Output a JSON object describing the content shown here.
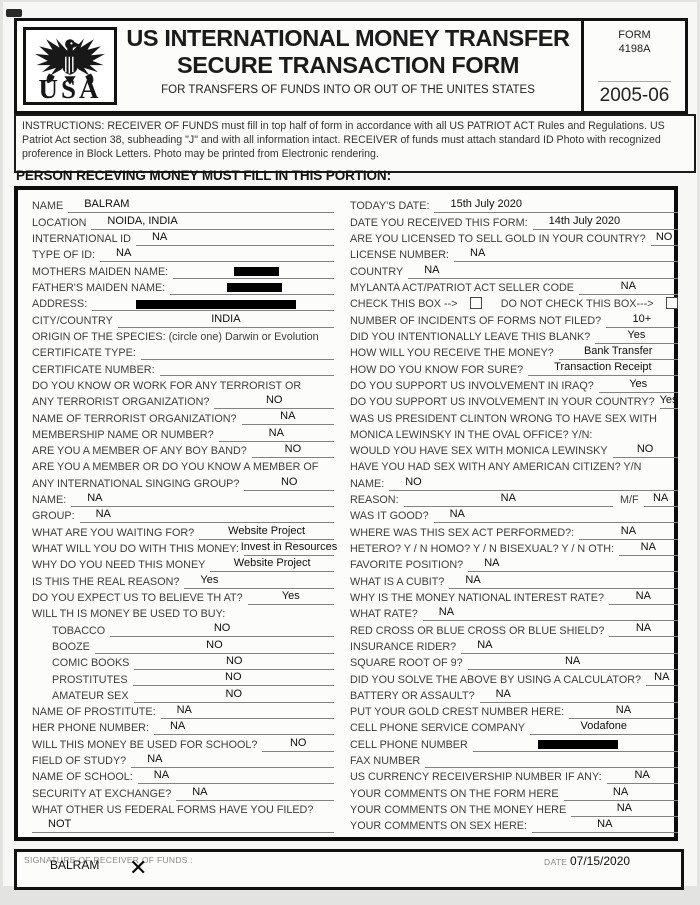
{
  "header": {
    "logo_text": "USA",
    "title_line1": "US INTERNATIONAL MONEY TRANSFER",
    "title_line2": "SECURE TRANSACTION FORM",
    "subtitle": "FOR TRANSFERS OF FUNDS INTO OR OUT OF THE UNITES STATES",
    "form_label": "FORM",
    "form_number": "4198A",
    "form_year": "2005-06"
  },
  "instructions": "INSTRUCTIONS: RECEIVER OF FUNDS  must fill in top half of form in accordance with all US PATRIOT ACT Rules and Regulations.  US Patriot Act section 38, subheading \"J\" and with all information intact. RECEIVER of funds must attach standard ID Photo with recognized proference in Block Letters.  Photo may be printed from Electronic rendering.",
  "section_heading": "PERSON RECEVING MONEY MUST FILL IN THIS PORTION:",
  "left_rows": [
    {
      "t": "f",
      "l": "NAME",
      "v": "BALRAM",
      "a": "l"
    },
    {
      "t": "f",
      "l": "LOCATION",
      "v": "NOIDA, INDIA",
      "a": "l"
    },
    {
      "t": "f",
      "l": "INTERNATIONAL ID",
      "v": "NA",
      "a": "l"
    },
    {
      "t": "f",
      "l": "TYPE OF ID:",
      "v": "NA",
      "a": "l"
    },
    {
      "t": "f",
      "l": "MOTHERS MAIDEN NAME:",
      "red": 45
    },
    {
      "t": "f",
      "l": "FATHER'S MAIDEN NAME:",
      "red": 55
    },
    {
      "t": "f",
      "l": "ADDRESS:",
      "red": 160
    },
    {
      "t": "f",
      "l": "CITY/COUNTRY",
      "v": "INDIA"
    },
    {
      "t": "t",
      "l": "ORIGIN OF THE SPECIES:  (circle one) Darwin or Evolution"
    },
    {
      "t": "f",
      "l": "CERTIFICATE TYPE:",
      "v": ""
    },
    {
      "t": "f",
      "l": "CERTIFICATE NUMBER:",
      "v": ""
    },
    {
      "t": "t",
      "l": "DO YOU KNOW OR WORK FOR ANY TERRORIST OR"
    },
    {
      "t": "f",
      "l": "ANY TERRORIST ORGANIZATION?",
      "v": "NO"
    },
    {
      "t": "f",
      "l": "NAME OF TERRORIST ORGANIZATION?",
      "v": "NA"
    },
    {
      "t": "f",
      "l": "MEMBERSHIP NAME OR NUMBER?",
      "v": "NA"
    },
    {
      "t": "f",
      "l": "ARE YOU A MEMBER OF ANY BOY BAND?",
      "v": "NO"
    },
    {
      "t": "t",
      "l": "ARE YOU A MEMBER OR DO YOU KNOW A MEMBER OF"
    },
    {
      "t": "f",
      "l": "ANY INTERNATIONAL SINGING GROUP?",
      "v": "NO"
    },
    {
      "t": "f",
      "l": "NAME:",
      "v": "NA",
      "a": "l"
    },
    {
      "t": "f",
      "l": "GROUP:",
      "v": "NA",
      "a": "l"
    },
    {
      "t": "f",
      "l": "WHAT ARE YOU WAITING FOR?",
      "v": "Website Project"
    },
    {
      "t": "f",
      "l": "WHAT WILL YOU DO WITH THIS MONEY:",
      "v": "Invest in Resources"
    },
    {
      "t": "f",
      "l": "WHY DO YOU NEED THIS MONEY",
      "v": "Website Project"
    },
    {
      "t": "f",
      "l": "IS THIS THE REAL REASON?",
      "v": "Yes",
      "a": "l"
    },
    {
      "t": "f",
      "l": "DO YOU EXPECT US TO BELIEVE TH AT?",
      "v": "Yes"
    },
    {
      "t": "t",
      "l": "WILL TH IS MONEY BE USED TO BUY:"
    },
    {
      "t": "f",
      "l": "TOBACCO",
      "v": "NO",
      "ind": 1
    },
    {
      "t": "f",
      "l": "BOOZE",
      "v": "NO",
      "ind": 1
    },
    {
      "t": "f",
      "l": "COMIC BOOKS",
      "v": "NO",
      "ind": 1
    },
    {
      "t": "f",
      "l": "PROSTITUTES",
      "v": "NO",
      "ind": 1
    },
    {
      "t": "f",
      "l": "AMATEUR SEX",
      "v": "NO",
      "ind": 1
    },
    {
      "t": "f",
      "l": "NAME OF PROSTITUTE:",
      "v": "NA",
      "a": "l"
    },
    {
      "t": "f",
      "l": "HER PHONE NUMBER:",
      "v": "NA",
      "a": "l"
    },
    {
      "t": "f",
      "l": "WILL THIS MONEY BE USED FOR SCHOOL?",
      "v": "NO"
    },
    {
      "t": "f",
      "l": "FIELD OF STUDY?",
      "v": "NA",
      "a": "l"
    },
    {
      "t": "f",
      "l": "NAME OF SCHOOL:",
      "v": "NA",
      "a": "l"
    },
    {
      "t": "f",
      "l": "SECURITY AT EXCHANGE?",
      "v": "NA",
      "a": "l"
    },
    {
      "t": "t",
      "l": "WHAT OTHER US FEDERAL FORMS HAVE YOU FILED?"
    },
    {
      "t": "f",
      "l": "",
      "v": "NOT",
      "a": "l"
    }
  ],
  "right_rows": [
    {
      "t": "f",
      "l": "TODAY'S DATE:",
      "v": "15th July  2020",
      "a": "l"
    },
    {
      "t": "f",
      "l": "DATE YOU RECEIVED THIS FORM:",
      "v": "14th July 2020",
      "a": "l"
    },
    {
      "t": "f",
      "l": "ARE YOU LICENSED TO SELL GOLD IN YOUR COUNTRY?",
      "v": "NO"
    },
    {
      "t": "f",
      "l": "LICENSE NUMBER:",
      "v": "NA",
      "a": "l"
    },
    {
      "t": "f",
      "l": "COUNTRY",
      "v": "NA",
      "a": "l"
    },
    {
      "t": "f",
      "l": "MYLANTA ACT/PATRIOT ACT SELLER CODE",
      "v": "NA"
    },
    {
      "t": "cb",
      "l1": "CHECK THIS BOX -->",
      "l2": "DO NOT CHECK THIS BOX--->"
    },
    {
      "t": "f",
      "l": "NUMBER OF INCIDENTS OF FORMS NOT FILED?",
      "v": "10+"
    },
    {
      "t": "f",
      "l": "DID YOU INTENTIONALLY LEAVE THIS BLANK?",
      "v": "Yes"
    },
    {
      "t": "f",
      "l": "HOW WILL YOU RECEIVE THE MONEY?",
      "v": "Bank Transfer"
    },
    {
      "t": "f",
      "l": "HOW DO YOU KNOW FOR SURE?",
      "v": "Transaction Receipt"
    },
    {
      "t": "f",
      "l": "DO YOU SUPPORT US INVOLVEMENT IN IRAQ?",
      "v": "Yes"
    },
    {
      "t": "f",
      "l": "DO YOU SUPPORT US INVOLVEMENT IN YOUR COUNTRY?",
      "v": "Yes"
    },
    {
      "t": "t",
      "l": "WAS US PRESIDENT CLINTON  WRONG TO HAVE SEX WITH"
    },
    {
      "t": "t",
      "l": "MONICA LEWINSKY IN THE OVAL OFFICE? Y/N:"
    },
    {
      "t": "f",
      "l": "WOULD YOU HAVE SEX WITH MONICA LEWINSKY",
      "v": "NO"
    },
    {
      "t": "t",
      "l": "HAVE YOU HAD SEX WITH ANY AMERICAN CITIZEN? Y/N"
    },
    {
      "t": "f",
      "l": "NAME:",
      "v": "NO",
      "a": "l"
    },
    {
      "t": "f2",
      "l": "REASON:",
      "v": "NA",
      "l2": "M/F",
      "v2": "NA"
    },
    {
      "t": "f",
      "l": "WAS IT GOOD?",
      "v": "NA",
      "a": "l"
    },
    {
      "t": "f",
      "l": "WHERE WAS THIS SEX ACT PERFORMED?:",
      "v": "NA"
    },
    {
      "t": "f",
      "l": "HETERO?  Y / N   HOMO?  Y / N    BISEXUAL?  Y / N  OTH:",
      "v": "NA"
    },
    {
      "t": "f",
      "l": "FAVORITE POSITION?",
      "v": "NA",
      "a": "l"
    },
    {
      "t": "f",
      "l": "WHAT IS A CUBIT?",
      "v": "NA",
      "a": "l"
    },
    {
      "t": "f",
      "l": "WHY IS THE MONEY  NATIONAL INTEREST RATE?",
      "v": "NA"
    },
    {
      "t": "f",
      "l": "WHAT RATE?",
      "v": "NA",
      "a": "l"
    },
    {
      "t": "f",
      "l": "RED CROSS OR BLUE CROSS OR BLUE SHIELD?",
      "v": "NA"
    },
    {
      "t": "f",
      "l": "INSURANCE RIDER?",
      "v": "NA",
      "a": "l"
    },
    {
      "t": "f",
      "l": "SQUARE ROOT OF 9?",
      "v": "NA"
    },
    {
      "t": "f",
      "l": "DID YOU SOLVE THE ABOVE BY USING A CALCULATOR?",
      "v": "NA"
    },
    {
      "t": "f",
      "l": "BATTERY OR ASSAULT?",
      "v": "NA",
      "a": "l"
    },
    {
      "t": "f",
      "l": "PUT YOUR GOLD CREST NUMBER HERE:",
      "v": "NA"
    },
    {
      "t": "f",
      "l": "CELL PHONE SERVICE COMPANY",
      "v": "Vodafone"
    },
    {
      "t": "f",
      "l": "CELL PHONE NUMBER",
      "red": 80
    },
    {
      "t": "f",
      "l": "FAX NUMBER",
      "v": ""
    },
    {
      "t": "f",
      "l": "US CURRENCY RECEIVERSHIP NUMBER IF ANY:",
      "v": "NA"
    },
    {
      "t": "f",
      "l": "YOUR COMMENTS ON THE FORM HERE",
      "v": "NA"
    },
    {
      "t": "f",
      "l": "YOUR COMMENTS ON THE MONEY HERE",
      "v": "NA"
    },
    {
      "t": "f",
      "l": "YOUR COMMENTS ON SEX HERE:",
      "v": "NA"
    }
  ],
  "signature": {
    "label": "SIGNATURE OF RECEIVER OF FUNDS :",
    "name": "BALRAM",
    "mark": "✕",
    "date_label": "DATE",
    "date_value": "07/15/2020"
  }
}
